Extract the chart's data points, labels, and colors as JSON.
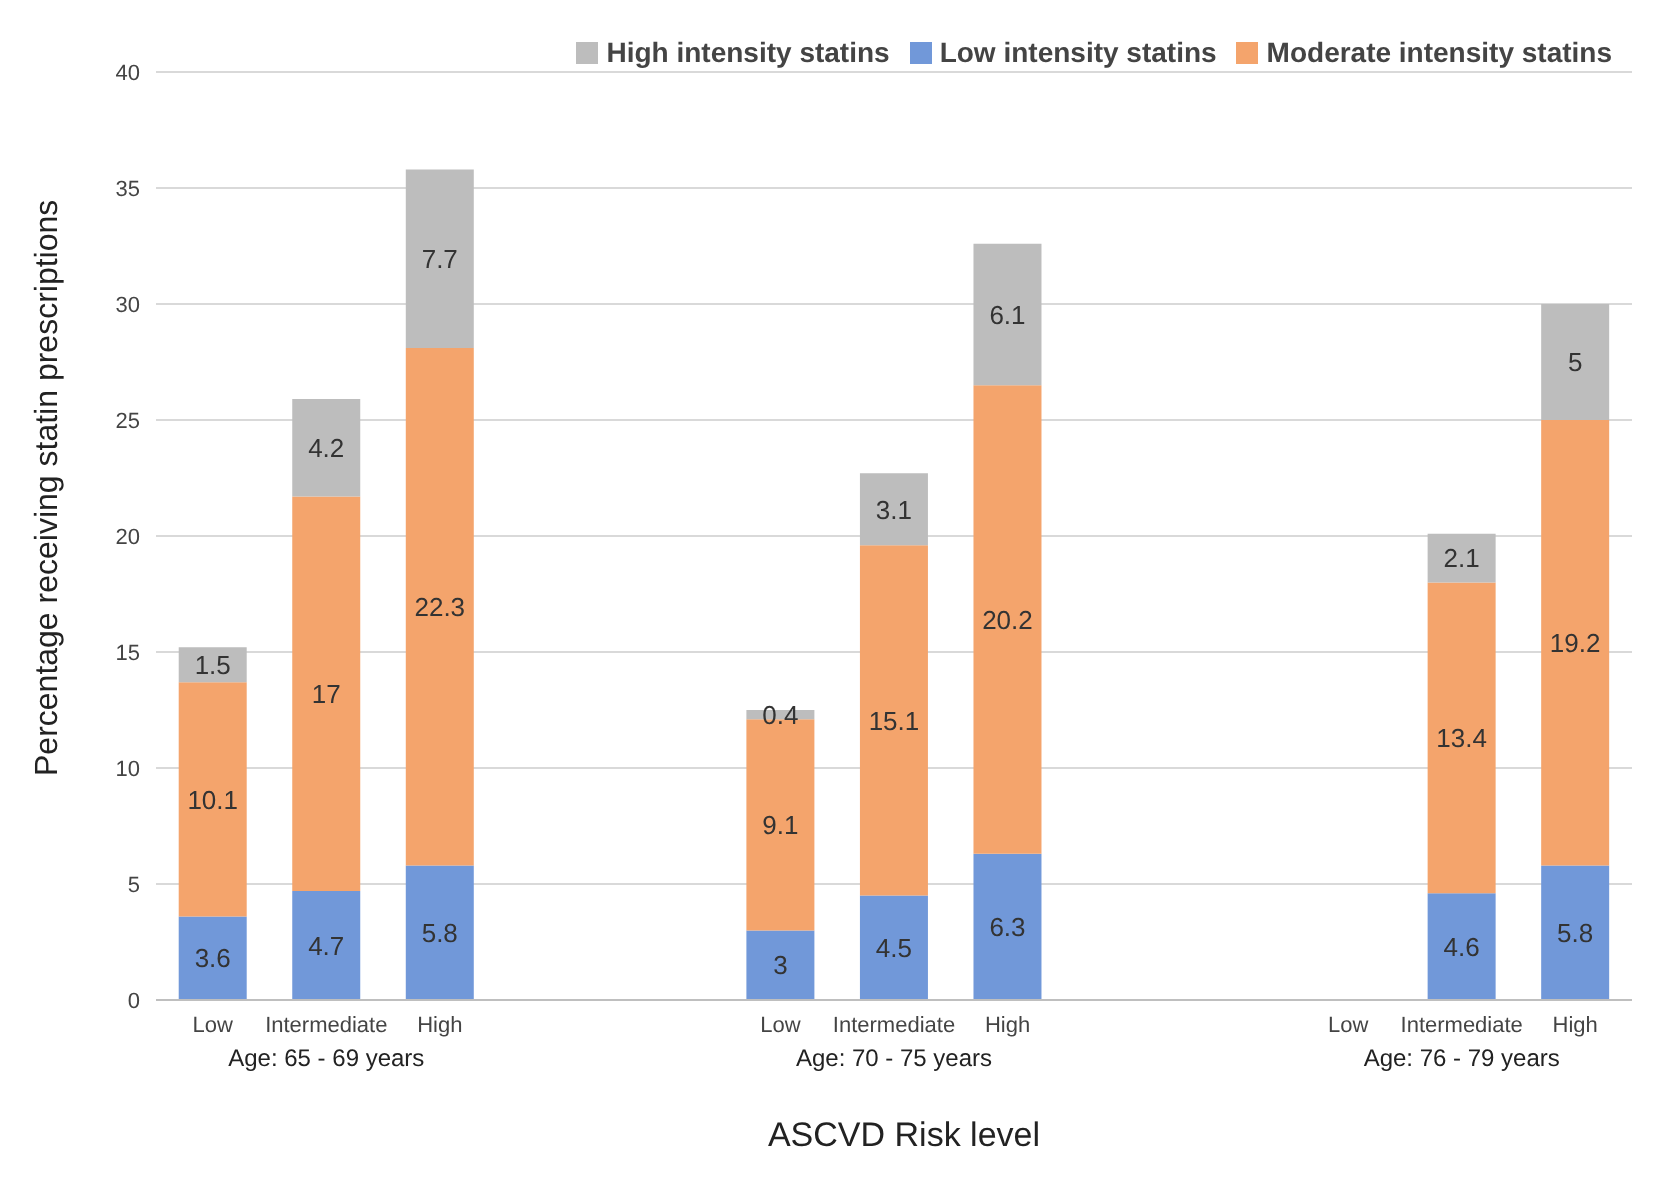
{
  "chart_data": {
    "type": "bar",
    "stacked": true,
    "xlabel": "ASCVD Risk level",
    "ylabel": "Percentage receiving  statin prescriptions",
    "categories": [
      "Low",
      "Intermediate",
      "High",
      null,
      null,
      "Low",
      "Intermediate",
      "High",
      null,
      null,
      "Low",
      "Intermediate",
      "High"
    ],
    "series": [
      {
        "name": "Low intensity statins",
        "color": "#7198d9",
        "values": [
          3.6,
          4.7,
          5.8,
          null,
          null,
          3,
          4.5,
          6.3,
          null,
          null,
          null,
          4.6,
          5.8
        ]
      },
      {
        "name": "Moderate intensity statins",
        "color": "#f4a46c",
        "values": [
          10.1,
          17,
          22.3,
          null,
          null,
          9.1,
          15.1,
          20.2,
          null,
          null,
          null,
          13.4,
          19.2
        ]
      },
      {
        "name": "High intensity statins",
        "color": "#bdbdbd",
        "values": [
          1.5,
          4.2,
          7.7,
          null,
          null,
          0.4,
          3.1,
          6.1,
          null,
          null,
          null,
          2.1,
          5
        ]
      }
    ],
    "ylim": [
      0,
      40
    ],
    "yticks": [
      0,
      5,
      10,
      15,
      20,
      25,
      30,
      35,
      40
    ],
    "grid": "y",
    "legend": "top right",
    "data_labels": true,
    "annotations": [
      "Age: 65 - 69 years",
      "Age: 70 - 75 years",
      "Age: 76 - 79 years"
    ]
  }
}
